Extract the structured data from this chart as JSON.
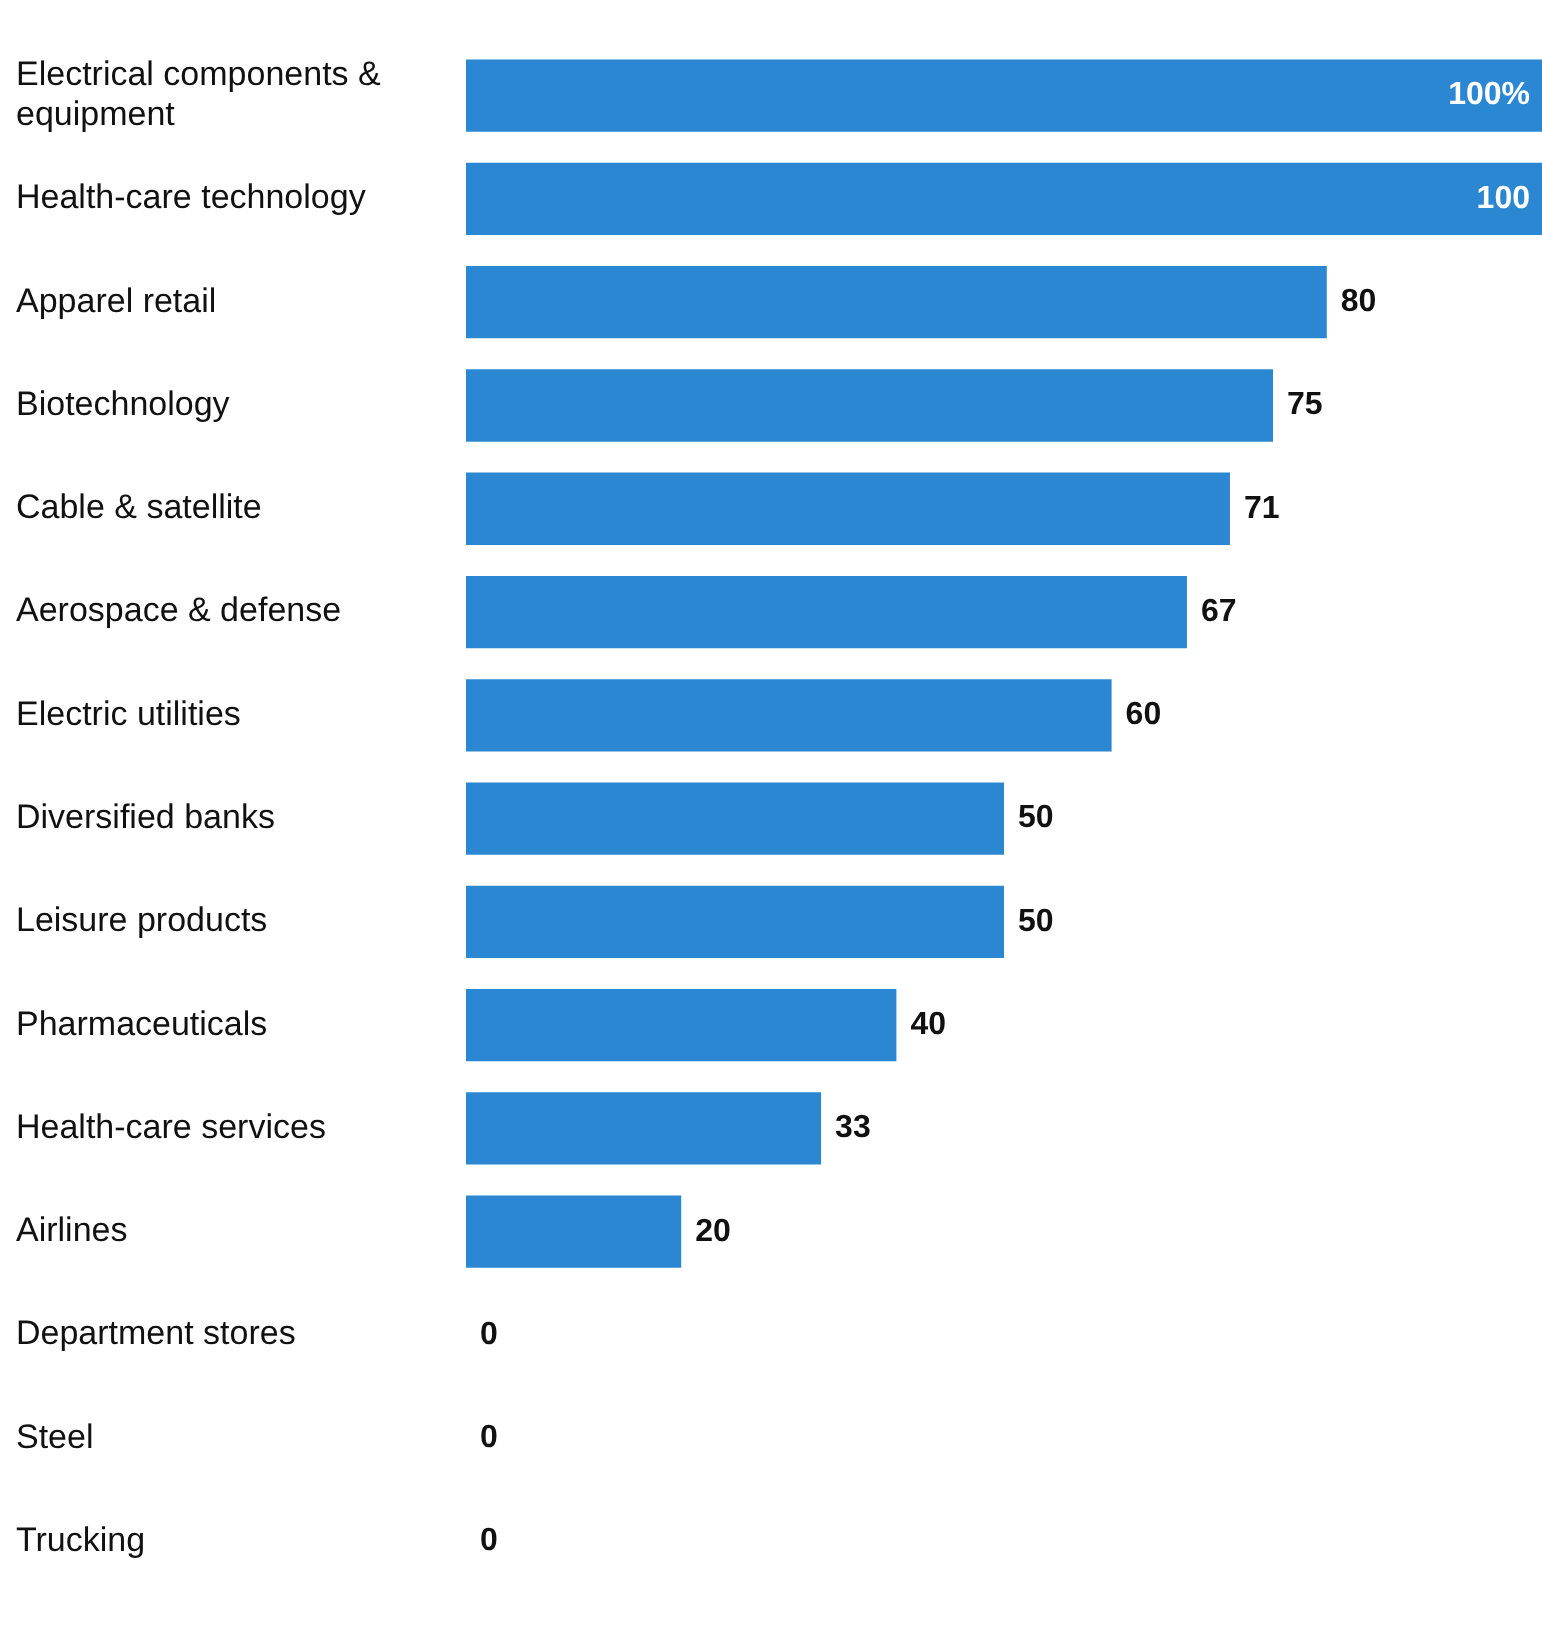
{
  "chart_data": {
    "type": "bar",
    "orientation": "horizontal",
    "categories": [
      "Electrical components & equipment",
      "Health-care technology",
      "Apparel retail",
      "Biotechnology",
      "Cable & satellite",
      "Aerospace & defense",
      "Electric utilities",
      "Diversified banks",
      "Leisure products",
      "Pharmaceuticals",
      "Health-care services",
      "Airlines",
      "Department stores",
      "Steel",
      "Trucking"
    ],
    "values": [
      100,
      100,
      80,
      75,
      71,
      67,
      60,
      50,
      50,
      40,
      33,
      20,
      0,
      0,
      0
    ],
    "value_labels": [
      "100%",
      "100",
      "80",
      "75",
      "71",
      "67",
      "60",
      "50",
      "50",
      "40",
      "33",
      "20",
      "0",
      "0",
      "0"
    ],
    "color": "#2b87d1",
    "xlim": [
      0,
      100
    ],
    "tick_labels": "y",
    "grid": false,
    "legend": false
  }
}
